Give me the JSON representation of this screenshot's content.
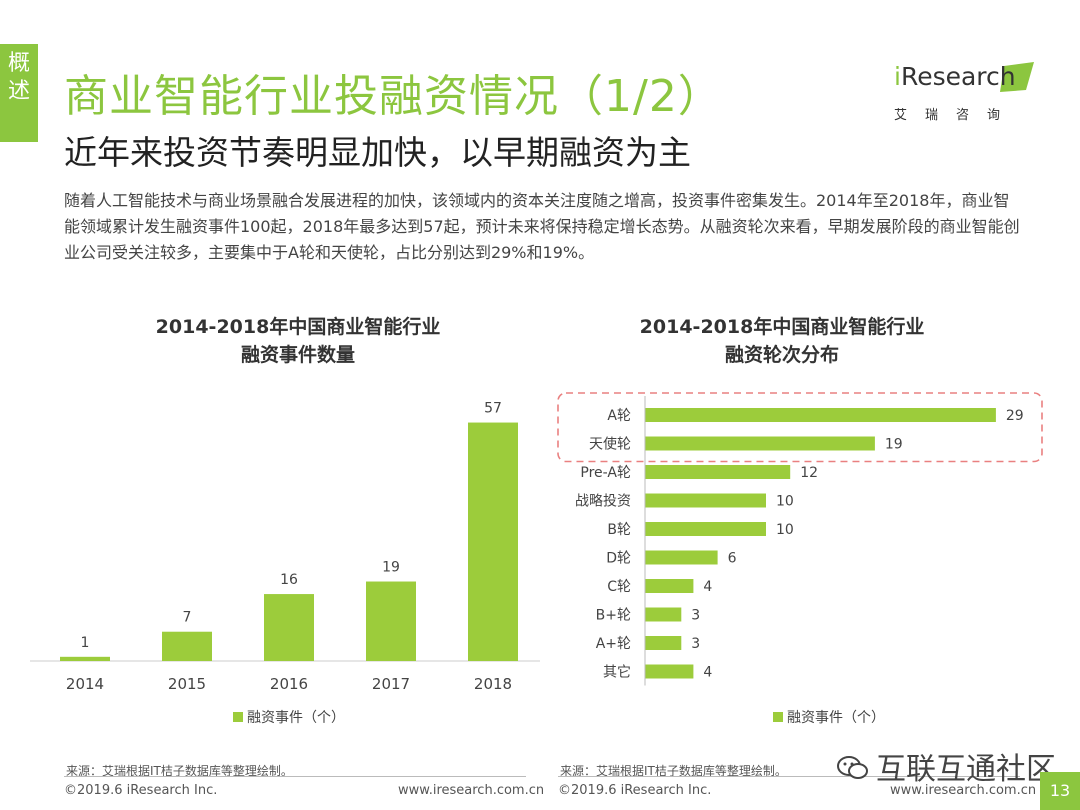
{
  "side_tab": {
    "chars": [
      "概",
      "述"
    ]
  },
  "header": {
    "title": "商业智能行业投融资情况（1/2）",
    "subtitle": "近年来投资节奏明显加快，以早期融资为主"
  },
  "logo": {
    "brand": "Research",
    "brand_i": "i",
    "tagline": "艾瑞咨询"
  },
  "intro": "随着人工智能技术与商业场景融合发展进程的加快，该领域内的资本关注度随之增高，投资事件密集发生。2014年至2018年，商业智能领域累计发生融资事件100起，2018年最多达到57起，预计未来将保持稳定增长态势。从融资轮次来看，早期发展阶段的商业智能创业公司受关注较多，主要集中于A轮和天使轮，占比分别达到29%和19%。",
  "colors": {
    "accent": "#8cc63f",
    "bar": "#9ccc3b",
    "highlight": "#e98080"
  },
  "chart_data": [
    {
      "type": "bar",
      "title": "2014-2018年中国商业智能行业融资事件数量",
      "title_lines": [
        "2014-2018年中国商业智能行业",
        "融资事件数量"
      ],
      "categories": [
        "2014",
        "2015",
        "2016",
        "2017",
        "2018"
      ],
      "series": [
        {
          "name": "融资事件（个）",
          "values": [
            1,
            7,
            16,
            19,
            57
          ]
        }
      ],
      "ylim": [
        0,
        60
      ],
      "xlabel": "",
      "ylabel": "",
      "legend": "bottom"
    },
    {
      "type": "bar",
      "orientation": "horizontal",
      "title": "2014-2018年中国商业智能行业融资轮次分布",
      "title_lines": [
        "2014-2018年中国商业智能行业",
        "融资轮次分布"
      ],
      "categories": [
        "A轮",
        "天使轮",
        "Pre-A轮",
        "战略投资",
        "B轮",
        "D轮",
        "C轮",
        "B+轮",
        "A+轮",
        "其它"
      ],
      "series": [
        {
          "name": "融资事件（个）",
          "values": [
            29,
            19,
            12,
            10,
            10,
            6,
            4,
            3,
            3,
            4
          ]
        }
      ],
      "xlim": [
        0,
        30
      ],
      "highlighted": [
        "A轮",
        "天使轮"
      ],
      "legend": "bottom"
    }
  ],
  "footer": {
    "source_left": "来源：艾瑞根据IT桔子数据库等整理绘制。",
    "source_right": "来源：艾瑞根据IT桔子数据库等整理绘制。",
    "copyright_left": "©2019.6 iResearch Inc.",
    "url_left": "www.iresearch.com.cn",
    "copyright_right": "©2019.6 iResearch Inc.",
    "url_right": "www.iresearch.com.cn",
    "page_number": "13"
  },
  "watermark": {
    "text": "互联互通社区"
  }
}
